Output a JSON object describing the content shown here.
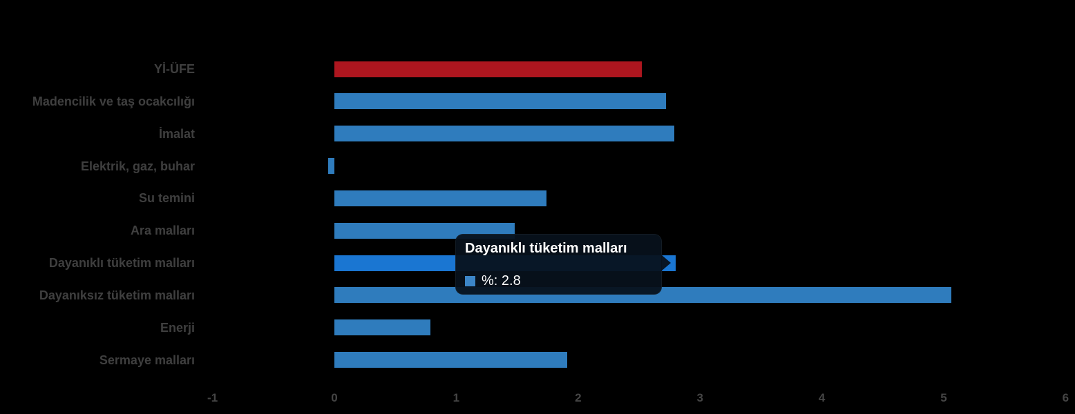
{
  "chart_data": {
    "type": "bar",
    "orientation": "horizontal",
    "title": "",
    "xlabel": "",
    "ylabel": "",
    "categories": [
      "Yİ-ÜFE",
      "Madencilik ve taş ocakcılığı",
      "İmalat",
      "Elektrik, gaz, buhar",
      "Su temini",
      "Ara malları",
      "Dayanıklı tüketim malları",
      "Dayanıksız tüketim malları",
      "Enerji",
      "Sermaye malları"
    ],
    "values": [
      2.52,
      2.72,
      2.79,
      -0.05,
      1.74,
      1.48,
      2.8,
      5.06,
      0.79,
      1.91
    ],
    "xlim": [
      -1,
      6
    ],
    "x_ticks": [
      -1,
      0,
      1,
      2,
      3,
      4,
      5,
      6
    ],
    "x_tick_labels": [
      "-1",
      "0",
      "1",
      "2",
      "3",
      "4",
      "5",
      "6"
    ],
    "grid": false,
    "legend": "none",
    "highlighted_index": 6,
    "colors": {
      "series": "#2f7cbd",
      "first_bar": "#ae161f",
      "highlight": "#1a76d2",
      "category_label": "#3f3f3f",
      "axis_label": "#454545",
      "background": "#000000"
    }
  },
  "tooltip": {
    "title": "Dayanıklı tüketim malları",
    "value_text": "%: 2.8",
    "swatch_color": "#3c85c6",
    "background": "#0a1622"
  }
}
